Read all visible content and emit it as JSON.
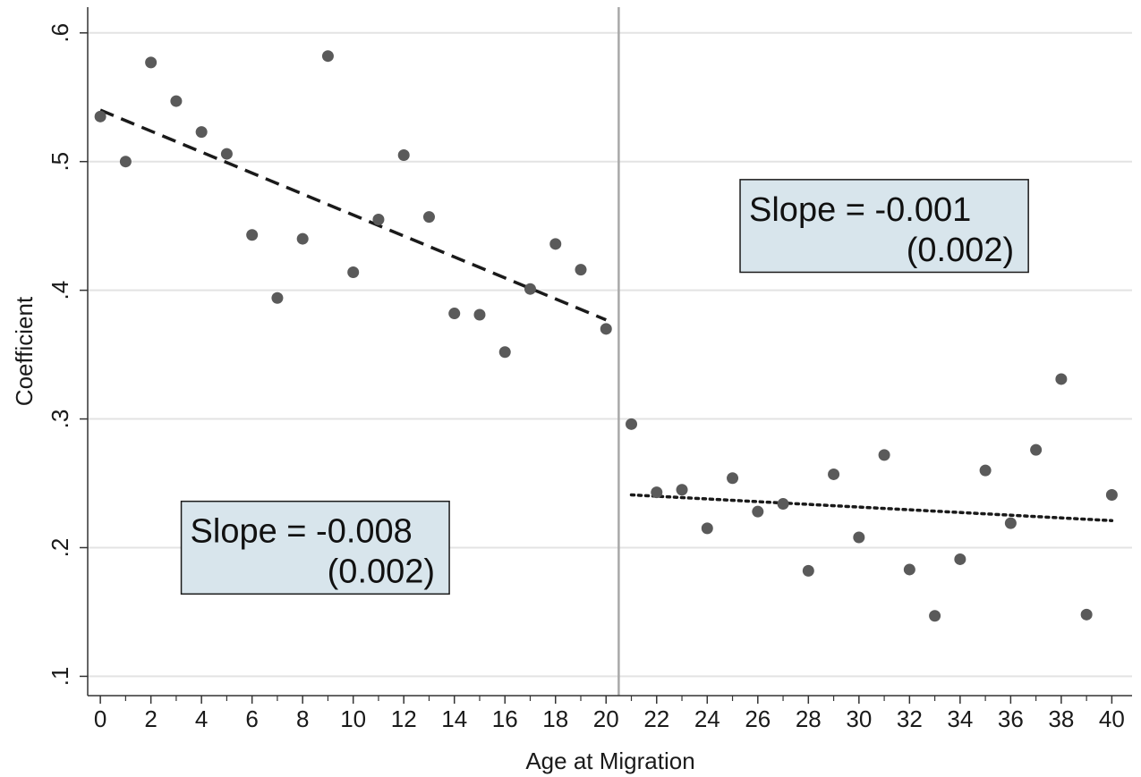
{
  "chart_data": {
    "type": "scatter",
    "title": "",
    "xlabel": "Age at Migration",
    "ylabel": "Coefficient",
    "xlim": [
      -0.5,
      40.8
    ],
    "ylim": [
      0.085,
      0.62
    ],
    "x_ticks": [
      0,
      2,
      4,
      6,
      8,
      10,
      12,
      14,
      16,
      18,
      20,
      22,
      24,
      26,
      28,
      30,
      32,
      34,
      36,
      38,
      40
    ],
    "x_tick_labels": [
      "0",
      "2",
      "4",
      "6",
      "8",
      "10",
      "12",
      "14",
      "16",
      "18",
      "20",
      "22",
      "24",
      "26",
      "28",
      "30",
      "32",
      "34",
      "36",
      "38",
      "40"
    ],
    "x_minor_ticks": [
      1,
      3,
      5,
      7,
      9,
      11,
      13,
      15,
      17,
      19,
      21,
      23,
      25,
      27,
      29,
      31,
      33,
      35,
      37,
      39
    ],
    "y_ticks": [
      0.1,
      0.2,
      0.3,
      0.4,
      0.5,
      0.6
    ],
    "y_tick_labels": [
      ".1",
      ".2",
      ".3",
      ".4",
      ".5",
      ".6"
    ],
    "grid": "horizontal",
    "vertical_line_x": 20.5,
    "points": [
      {
        "x": 0,
        "y": 0.535
      },
      {
        "x": 1,
        "y": 0.5
      },
      {
        "x": 2,
        "y": 0.577
      },
      {
        "x": 3,
        "y": 0.547
      },
      {
        "x": 4,
        "y": 0.523
      },
      {
        "x": 5,
        "y": 0.506
      },
      {
        "x": 6,
        "y": 0.443
      },
      {
        "x": 7,
        "y": 0.394
      },
      {
        "x": 8,
        "y": 0.44
      },
      {
        "x": 9,
        "y": 0.582
      },
      {
        "x": 10,
        "y": 0.414
      },
      {
        "x": 11,
        "y": 0.455
      },
      {
        "x": 12,
        "y": 0.505
      },
      {
        "x": 13,
        "y": 0.457
      },
      {
        "x": 14,
        "y": 0.382
      },
      {
        "x": 15,
        "y": 0.381
      },
      {
        "x": 16,
        "y": 0.352
      },
      {
        "x": 17,
        "y": 0.401
      },
      {
        "x": 18,
        "y": 0.436
      },
      {
        "x": 19,
        "y": 0.416
      },
      {
        "x": 20,
        "y": 0.37
      },
      {
        "x": 21,
        "y": 0.296
      },
      {
        "x": 22,
        "y": 0.243
      },
      {
        "x": 23,
        "y": 0.245
      },
      {
        "x": 24,
        "y": 0.215
      },
      {
        "x": 25,
        "y": 0.254
      },
      {
        "x": 26,
        "y": 0.228
      },
      {
        "x": 27,
        "y": 0.234
      },
      {
        "x": 28,
        "y": 0.182
      },
      {
        "x": 29,
        "y": 0.257
      },
      {
        "x": 30,
        "y": 0.208
      },
      {
        "x": 31,
        "y": 0.272
      },
      {
        "x": 32,
        "y": 0.183
      },
      {
        "x": 33,
        "y": 0.147
      },
      {
        "x": 34,
        "y": 0.191
      },
      {
        "x": 35,
        "y": 0.26
      },
      {
        "x": 36,
        "y": 0.219
      },
      {
        "x": 37,
        "y": 0.276
      },
      {
        "x": 38,
        "y": 0.331
      },
      {
        "x": 39,
        "y": 0.148
      },
      {
        "x": 40,
        "y": 0.241
      }
    ],
    "fit_lines": [
      {
        "style": "dashed",
        "x": [
          0,
          20
        ],
        "y": [
          0.54,
          0.377
        ]
      },
      {
        "style": "dotted",
        "x": [
          21,
          40
        ],
        "y": [
          0.241,
          0.221
        ]
      }
    ],
    "annotations": [
      {
        "slope_text": "Slope = -0.008",
        "se_text": "(0.002)",
        "box": [
          3.2,
          13.8,
          0.164,
          0.236
        ]
      },
      {
        "slope_text": "Slope = -0.001",
        "se_text": "(0.002)",
        "box": [
          25.3,
          36.7,
          0.414,
          0.486
        ]
      }
    ],
    "colors": {
      "point": "#5a5a5a",
      "fit_line": "#1a1a1a",
      "box_fill": "#d8e5ec",
      "box_border": "#1a1a1a",
      "grid": "#e3e3e3",
      "vertical_line": "#a8a8a8",
      "axis": "#333333"
    }
  }
}
